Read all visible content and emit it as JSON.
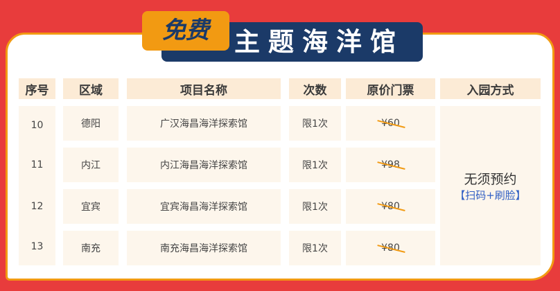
{
  "title": {
    "badge": "免费",
    "main": "主题海洋馆"
  },
  "headers": [
    "序号",
    "区域",
    "项目名称",
    "次数",
    "原价门票",
    "入园方式"
  ],
  "rows": [
    {
      "seq": "10",
      "region": "德阳",
      "name": "广汉海昌海洋探索馆",
      "times": "限1次",
      "price": "¥60"
    },
    {
      "seq": "11",
      "region": "内江",
      "name": "内江海昌海洋探索馆",
      "times": "限1次",
      "price": "¥98"
    },
    {
      "seq": "12",
      "region": "宜宾",
      "name": "宜宾海昌海洋探索馆",
      "times": "限1次",
      "price": "¥80"
    },
    {
      "seq": "13",
      "region": "南充",
      "name": "南充海昌海洋探索馆",
      "times": "限1次",
      "price": "¥80"
    }
  ],
  "entry": {
    "line1": "无须预约",
    "line2": "【扫码+刷脸】"
  },
  "colors": {
    "background": "#e83c3c",
    "accent": "#f29a12",
    "navy": "#1b3a68",
    "link": "#2f5fc4"
  }
}
